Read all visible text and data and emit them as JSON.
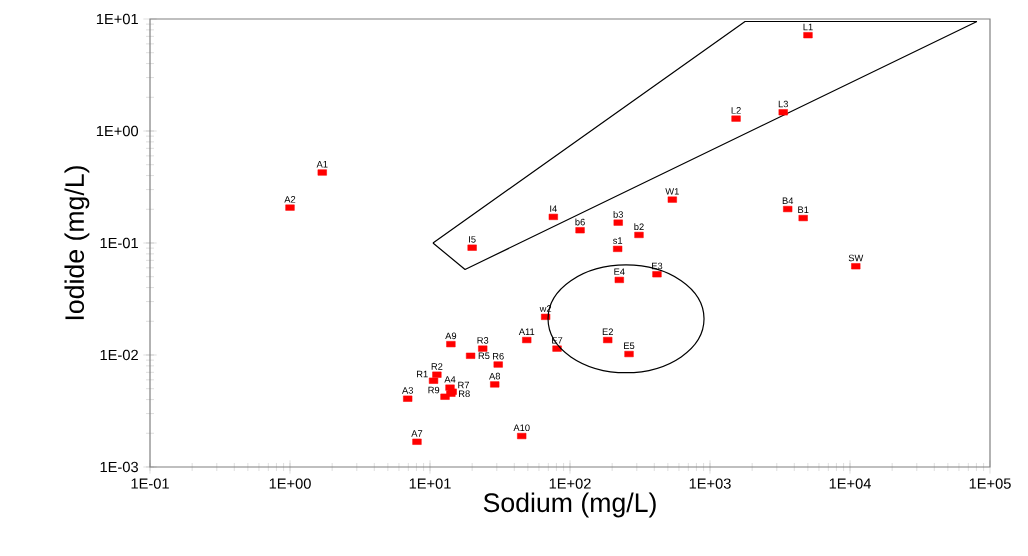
{
  "chart_data": {
    "type": "scatter",
    "xlabel": "Sodium (mg/L)",
    "ylabel": "Iodide (mg/L)",
    "log": "xy",
    "grid": false,
    "xlim": [
      0.1,
      100000
    ],
    "ylim": [
      0.001,
      10
    ],
    "xticks": [
      {
        "value": 0.1,
        "label": "1E-01"
      },
      {
        "value": 1,
        "label": "1E+00"
      },
      {
        "value": 10,
        "label": "1E+01"
      },
      {
        "value": 100,
        "label": "1E+02"
      },
      {
        "value": 1000,
        "label": "1E+03"
      },
      {
        "value": 10000,
        "label": "1E+04"
      },
      {
        "value": 100000,
        "label": "1E+05"
      }
    ],
    "yticks": [
      {
        "value": 0.001,
        "label": "1E-03"
      },
      {
        "value": 0.01,
        "label": "1E-02"
      },
      {
        "value": 0.1,
        "label": "1E-01"
      },
      {
        "value": 1,
        "label": "1E+00"
      },
      {
        "value": 10,
        "label": "1E+01"
      }
    ],
    "series": [
      {
        "type": "line",
        "color": "#000000",
        "marker": "none",
        "line_style": "solid",
        "x": [
          10.5,
          1780,
          80700
        ],
        "values": [
          0.1,
          9.5,
          9.5
        ]
      },
      {
        "type": "line",
        "color": "#000000",
        "marker": "none",
        "line_style": "solid",
        "x": [
          10.5,
          17.8,
          80700
        ],
        "values": [
          0.1,
          0.058,
          9.5
        ]
      },
      {
        "type": "scatter",
        "color": "#ff0000",
        "marker": "square",
        "x": [
          1.7,
          1.0,
          5010,
          1535,
          3334,
          538,
          3590,
          4630,
          11000,
          76,
          118,
          221,
          311,
          219,
          20,
          225,
          418,
          67,
          186,
          264,
          80.8,
          49.1,
          14.1,
          23.8,
          19.5,
          30.7,
          29,
          6.93,
          8.07,
          45.2,
          11.2,
          10.6,
          13.9,
          14.4,
          12.8,
          14.1
        ],
        "values": [
          0.426,
          0.207,
          7.17,
          1.29,
          1.47,
          0.244,
          0.201,
          0.167,
          0.062,
          0.171,
          0.13,
          0.152,
          0.118,
          0.0886,
          0.0908,
          0.0468,
          0.0526,
          0.0219,
          0.0136,
          0.0102,
          0.0114,
          0.0136,
          0.0125,
          0.0114,
          0.00984,
          0.00822,
          0.00546,
          0.00407,
          0.00168,
          0.00189,
          0.00667,
          0.00589,
          0.00511,
          0.0047,
          0.00424,
          0.00451
        ]
      }
    ],
    "annotations": [
      {
        "text": "A1",
        "x": 1.7,
        "y": 0.426
      },
      {
        "text": "A2",
        "x": 1.0,
        "y": 0.207
      },
      {
        "text": "L1",
        "x": 5010,
        "y": 7.17
      },
      {
        "text": "L2",
        "x": 1535,
        "y": 1.29
      },
      {
        "text": "L3",
        "x": 3334,
        "y": 1.47
      },
      {
        "text": "W1",
        "x": 538,
        "y": 0.244
      },
      {
        "text": "B4",
        "x": 3590,
        "y": 0.201
      },
      {
        "text": "B1",
        "x": 4630,
        "y": 0.167
      },
      {
        "text": "SW",
        "x": 11000,
        "y": 0.062
      },
      {
        "text": "I4",
        "x": 76,
        "y": 0.171
      },
      {
        "text": "b6",
        "x": 118,
        "y": 0.13
      },
      {
        "text": "b3",
        "x": 221,
        "y": 0.152
      },
      {
        "text": "b2",
        "x": 311,
        "y": 0.118
      },
      {
        "text": "s1",
        "x": 219,
        "y": 0.0886
      },
      {
        "text": "I5",
        "x": 20,
        "y": 0.0908
      },
      {
        "text": "E4",
        "x": 225,
        "y": 0.0468
      },
      {
        "text": "E3",
        "x": 418,
        "y": 0.0526
      },
      {
        "text": "w2",
        "x": 67,
        "y": 0.0219
      },
      {
        "text": "E2",
        "x": 186,
        "y": 0.0136
      },
      {
        "text": "E5",
        "x": 264,
        "y": 0.0102
      },
      {
        "text": "E7",
        "x": 80.8,
        "y": 0.0114
      },
      {
        "text": "A11",
        "x": 49.1,
        "y": 0.0136
      },
      {
        "text": "A9",
        "x": 14.1,
        "y": 0.0125
      },
      {
        "text": "R3",
        "x": 23.8,
        "y": 0.0114
      },
      {
        "text": "R5",
        "x": 19.5,
        "y": 0.00984
      },
      {
        "text": "R6",
        "x": 30.7,
        "y": 0.00822
      },
      {
        "text": "A8",
        "x": 29,
        "y": 0.00546
      },
      {
        "text": "A3",
        "x": 6.93,
        "y": 0.00407
      },
      {
        "text": "A7",
        "x": 8.07,
        "y": 0.00168
      },
      {
        "text": "A10",
        "x": 45.2,
        "y": 0.00189
      },
      {
        "text": "R2",
        "x": 11.2,
        "y": 0.00667
      },
      {
        "text": "R1",
        "x": 10.6,
        "y": 0.00589
      },
      {
        "text": "A4",
        "x": 13.9,
        "y": 0.00511
      },
      {
        "text": "R7",
        "x": 14.4,
        "y": 0.0047
      },
      {
        "text": "R9",
        "x": 12.8,
        "y": 0.00424
      },
      {
        "text": "R8",
        "x": 14.1,
        "y": 0.00451
      }
    ]
  }
}
